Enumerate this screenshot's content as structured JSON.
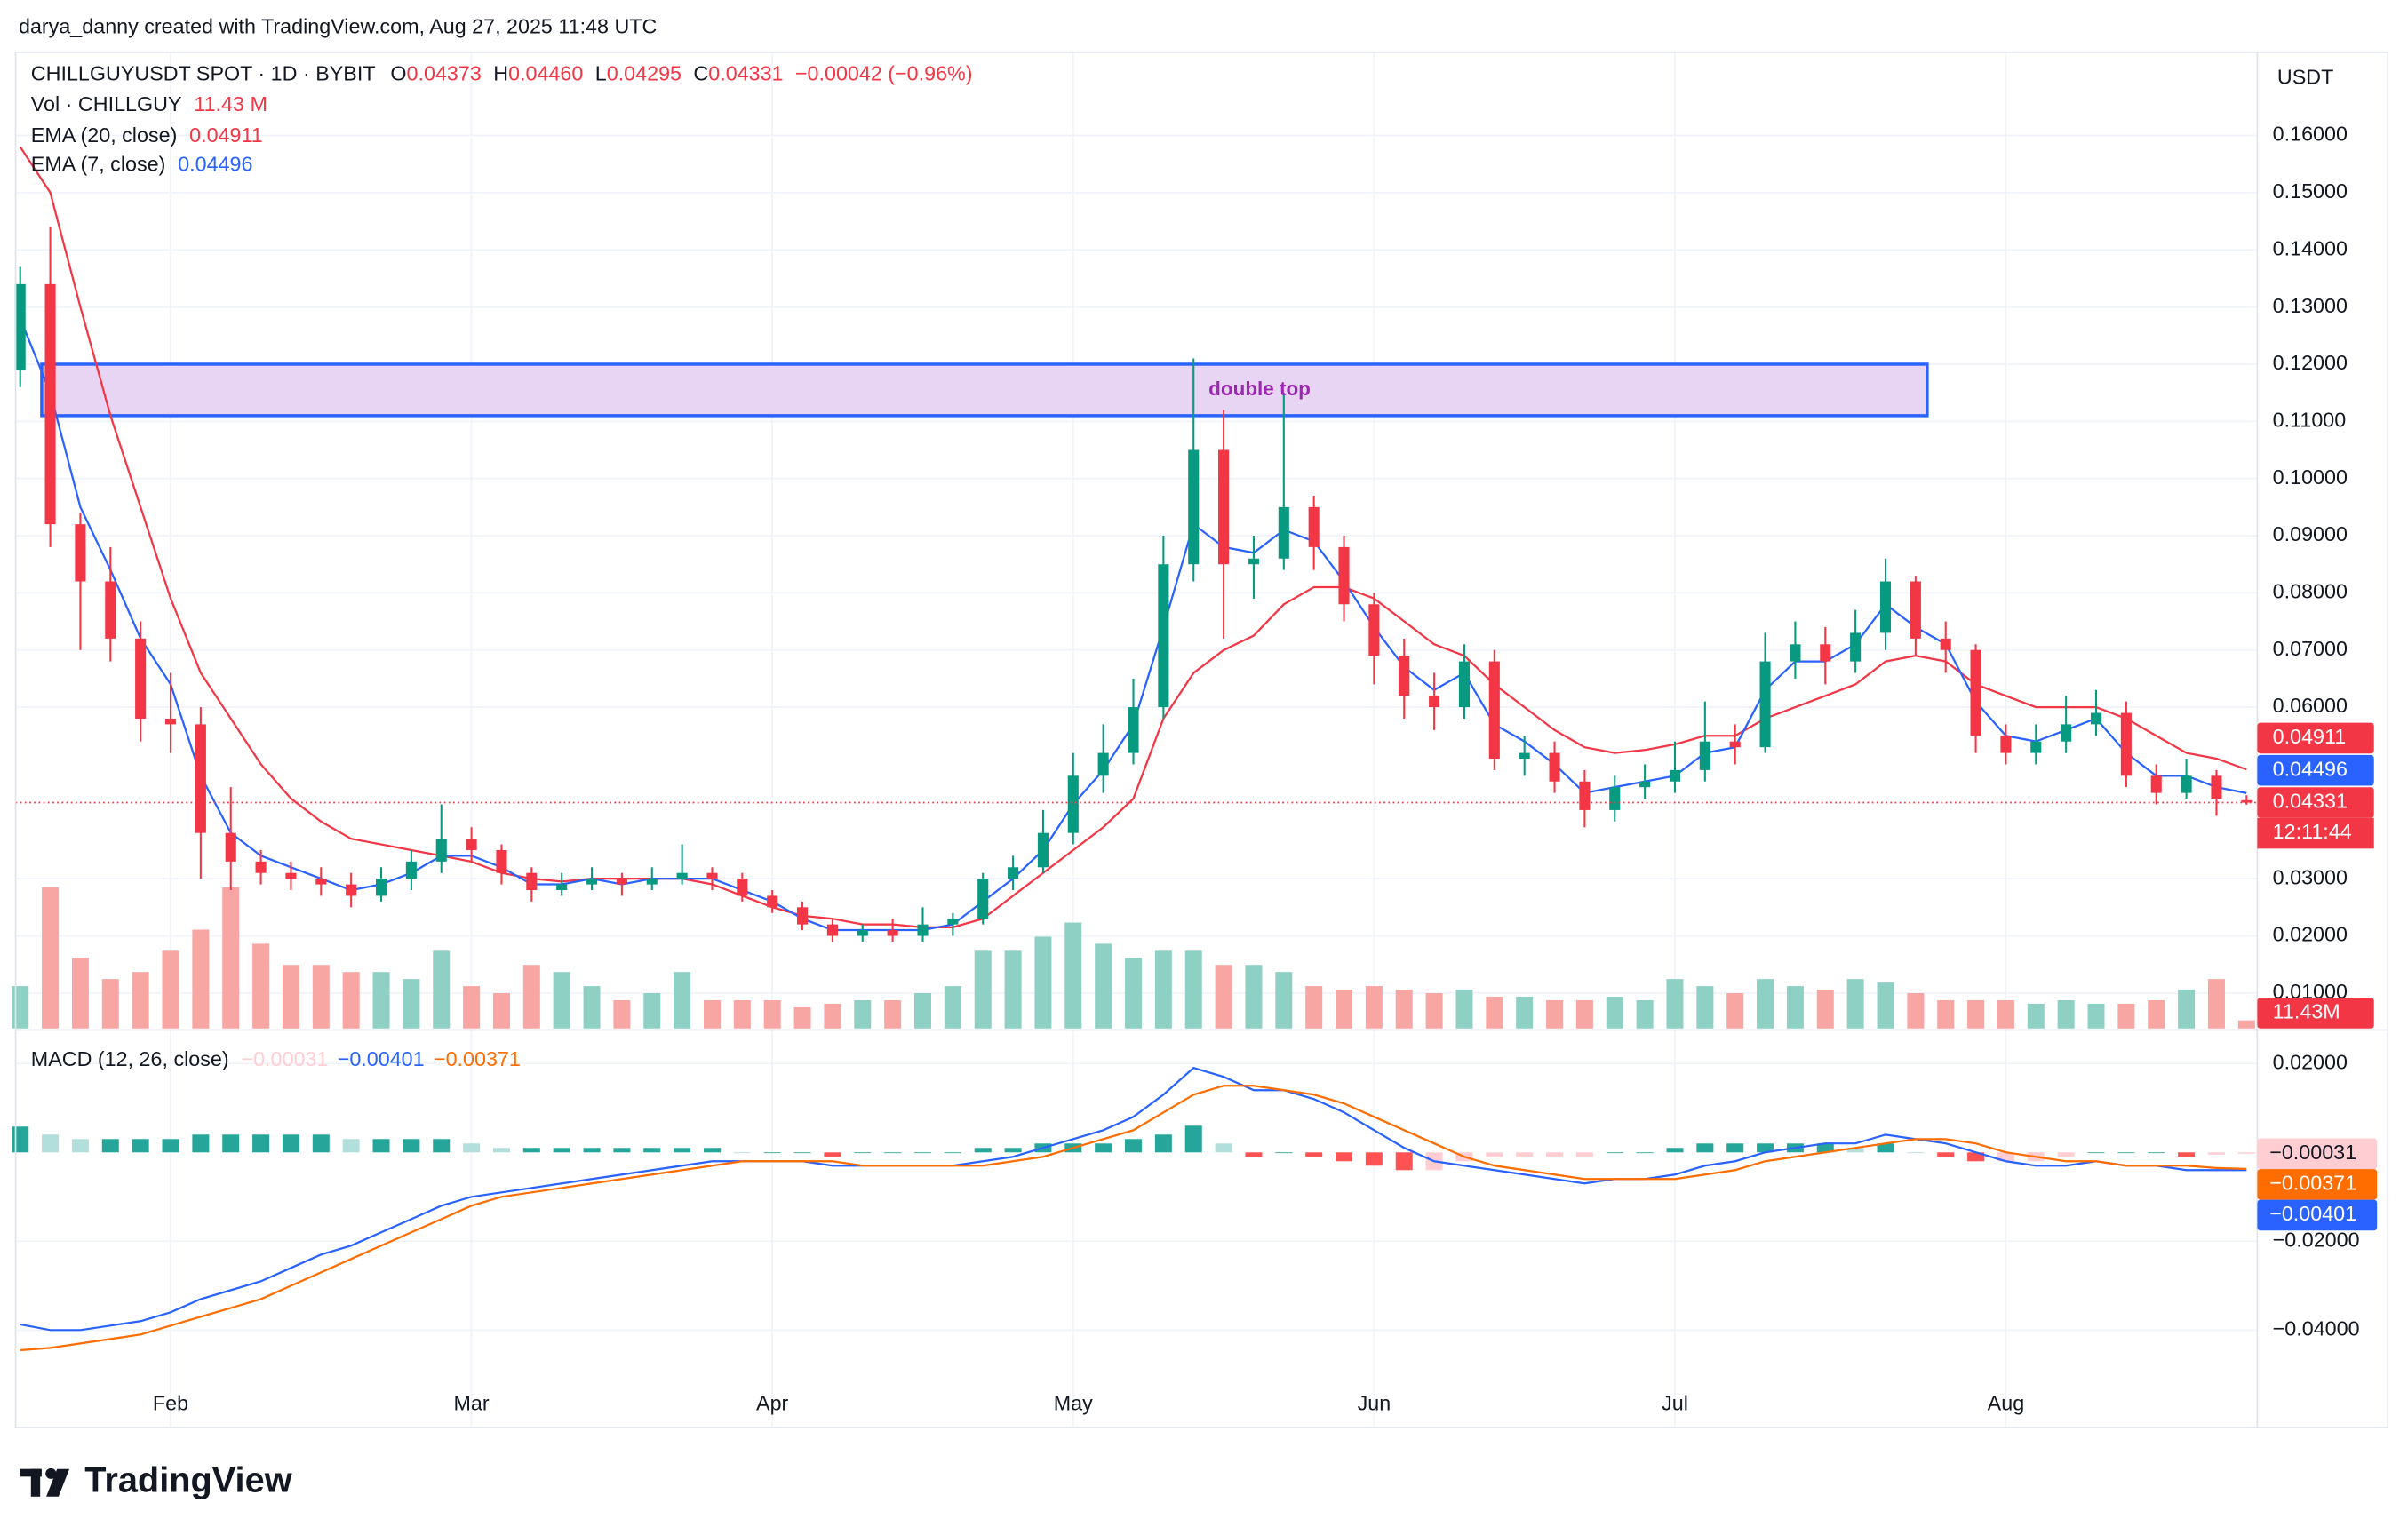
{
  "attribution": "darya_danny created with TradingView.com, Aug 27, 2025 11:48 UTC",
  "brand": "TradingView",
  "chart_data": {
    "type": "candlestick",
    "title": "CHILLGUYUSDT SPOT · 1D · BYBIT",
    "ohlc_header": [
      {
        "label": "O",
        "value": "0.04373"
      },
      {
        "label": "H",
        "value": "0.04460"
      },
      {
        "label": "L",
        "value": "0.04295"
      },
      {
        "label": "C",
        "value": "0.04331"
      }
    ],
    "change": "−0.00042 (−0.96%)",
    "currency": "USDT",
    "categories": [
      null,
      null,
      null,
      null,
      null,
      "Feb",
      null,
      null,
      null,
      null,
      null,
      null,
      null,
      null,
      null,
      "Mar",
      null,
      null,
      null,
      null,
      null,
      null,
      null,
      null,
      null,
      "Apr",
      null,
      null,
      null,
      null,
      null,
      null,
      null,
      null,
      null,
      "May",
      null,
      null,
      null,
      null,
      null,
      null,
      null,
      null,
      null,
      "Jun",
      null,
      null,
      null,
      null,
      null,
      null,
      null,
      null,
      null,
      "Jul",
      null,
      null,
      null,
      null,
      null,
      null,
      null,
      null,
      null,
      null,
      "Aug",
      null,
      null,
      null,
      null,
      null,
      null,
      null,
      null
    ],
    "open": [
      0.119,
      0.134,
      0.092,
      0.082,
      0.072,
      0.058,
      0.057,
      0.038,
      0.033,
      0.031,
      0.03,
      0.029,
      0.027,
      0.03,
      0.033,
      0.037,
      0.035,
      0.031,
      0.028,
      0.029,
      0.03,
      0.029,
      0.03,
      0.031,
      0.03,
      0.027,
      0.025,
      0.022,
      0.02,
      0.021,
      0.02,
      0.022,
      0.023,
      0.03,
      0.032,
      0.038,
      0.048,
      0.052,
      0.06,
      0.085,
      0.105,
      0.085,
      0.086,
      0.095,
      0.088,
      0.078,
      0.069,
      0.062,
      0.06,
      0.068,
      0.051,
      0.052,
      0.047,
      0.042,
      0.046,
      0.047,
      0.049,
      0.054,
      0.053,
      0.068,
      0.071,
      0.068,
      0.073,
      0.082,
      0.072,
      0.07,
      0.055,
      0.052,
      0.054,
      0.057,
      0.059,
      0.048,
      0.045,
      0.048,
      0.04373
    ],
    "high": [
      0.137,
      0.144,
      0.094,
      0.088,
      0.075,
      0.066,
      0.06,
      0.046,
      0.035,
      0.033,
      0.032,
      0.031,
      0.032,
      0.035,
      0.043,
      0.039,
      0.036,
      0.032,
      0.031,
      0.032,
      0.031,
      0.032,
      0.036,
      0.032,
      0.031,
      0.028,
      0.026,
      0.023,
      0.022,
      0.023,
      0.025,
      0.024,
      0.031,
      0.034,
      0.042,
      0.052,
      0.057,
      0.065,
      0.09,
      0.121,
      0.112,
      0.09,
      0.115,
      0.097,
      0.09,
      0.08,
      0.072,
      0.066,
      0.071,
      0.07,
      0.055,
      0.054,
      0.049,
      0.048,
      0.05,
      0.054,
      0.061,
      0.057,
      0.073,
      0.075,
      0.074,
      0.077,
      0.086,
      0.083,
      0.075,
      0.071,
      0.057,
      0.057,
      0.062,
      0.063,
      0.061,
      0.05,
      0.051,
      0.049,
      0.0446
    ],
    "low": [
      0.116,
      0.088,
      0.07,
      0.068,
      0.054,
      0.052,
      0.03,
      0.028,
      0.029,
      0.028,
      0.027,
      0.025,
      0.026,
      0.028,
      0.031,
      0.033,
      0.029,
      0.026,
      0.027,
      0.028,
      0.027,
      0.028,
      0.029,
      0.028,
      0.026,
      0.024,
      0.021,
      0.019,
      0.019,
      0.019,
      0.019,
      0.02,
      0.022,
      0.028,
      0.031,
      0.036,
      0.045,
      0.05,
      0.058,
      0.082,
      0.072,
      0.079,
      0.084,
      0.084,
      0.075,
      0.064,
      0.058,
      0.056,
      0.058,
      0.049,
      0.048,
      0.045,
      0.039,
      0.04,
      0.044,
      0.045,
      0.047,
      0.05,
      0.052,
      0.065,
      0.064,
      0.066,
      0.07,
      0.069,
      0.066,
      0.052,
      0.05,
      0.05,
      0.052,
      0.055,
      0.046,
      0.043,
      0.044,
      0.041,
      0.04295
    ],
    "close": [
      0.134,
      0.092,
      0.082,
      0.072,
      0.058,
      0.057,
      0.038,
      0.033,
      0.031,
      0.03,
      0.029,
      0.027,
      0.03,
      0.033,
      0.037,
      0.035,
      0.031,
      0.028,
      0.029,
      0.03,
      0.029,
      0.03,
      0.031,
      0.03,
      0.027,
      0.025,
      0.022,
      0.02,
      0.021,
      0.02,
      0.022,
      0.023,
      0.03,
      0.032,
      0.038,
      0.048,
      0.052,
      0.06,
      0.085,
      0.105,
      0.085,
      0.086,
      0.095,
      0.088,
      0.078,
      0.069,
      0.062,
      0.06,
      0.068,
      0.051,
      0.052,
      0.047,
      0.042,
      0.046,
      0.047,
      0.049,
      0.054,
      0.053,
      0.068,
      0.071,
      0.068,
      0.073,
      0.082,
      0.072,
      0.07,
      0.055,
      0.052,
      0.054,
      0.057,
      0.059,
      0.048,
      0.045,
      0.048,
      0.044,
      0.04331
    ],
    "up_color": "#089981",
    "down_color": "#f23645",
    "ylim": [
      0.0038,
      0.1735
    ],
    "yticks": [
      {
        "value": 0.16,
        "label": "0.16000"
      },
      {
        "value": 0.15,
        "label": "0.15000"
      },
      {
        "value": 0.14,
        "label": "0.14000"
      },
      {
        "value": 0.13,
        "label": "0.13000"
      },
      {
        "value": 0.12,
        "label": "0.12000"
      },
      {
        "value": 0.11,
        "label": "0.11000"
      },
      {
        "value": 0.1,
        "label": "0.10000"
      },
      {
        "value": 0.09,
        "label": "0.09000"
      },
      {
        "value": 0.08,
        "label": "0.08000"
      },
      {
        "value": 0.07,
        "label": "0.07000"
      },
      {
        "value": 0.06,
        "label": "0.06000"
      },
      {
        "value": 0.03,
        "label": "0.03000"
      },
      {
        "value": 0.02,
        "label": "0.02000"
      },
      {
        "value": 0.01,
        "label": "0.01000"
      }
    ],
    "grid": true,
    "overlays": [
      {
        "name": "EMA (20, close)",
        "value_label": "0.04911",
        "color": "#f23645",
        "values": [
          0.158,
          0.15,
          0.13,
          0.111,
          0.095,
          0.079,
          0.066,
          0.058,
          0.05,
          0.044,
          0.04,
          0.037,
          0.036,
          0.035,
          0.034,
          0.033,
          0.031,
          0.03,
          0.0295,
          0.03,
          0.03,
          0.03,
          0.03,
          0.029,
          0.027,
          0.025,
          0.0235,
          0.023,
          0.022,
          0.022,
          0.0215,
          0.0215,
          0.023,
          0.027,
          0.031,
          0.035,
          0.039,
          0.044,
          0.058,
          0.066,
          0.07,
          0.0725,
          0.078,
          0.081,
          0.081,
          0.079,
          0.075,
          0.071,
          0.069,
          0.064,
          0.06,
          0.056,
          0.053,
          0.052,
          0.0525,
          0.0535,
          0.055,
          0.055,
          0.058,
          0.06,
          0.062,
          0.064,
          0.068,
          0.069,
          0.068,
          0.064,
          0.062,
          0.06,
          0.06,
          0.06,
          0.058,
          0.055,
          0.052,
          0.051,
          0.04911
        ]
      },
      {
        "name": "EMA (7, close)",
        "value_label": "0.04496",
        "color": "#2962ff",
        "values": [
          0.128,
          0.115,
          0.095,
          0.084,
          0.072,
          0.064,
          0.048,
          0.038,
          0.034,
          0.032,
          0.03,
          0.028,
          0.029,
          0.031,
          0.034,
          0.034,
          0.032,
          0.029,
          0.029,
          0.03,
          0.029,
          0.03,
          0.03,
          0.03,
          0.028,
          0.026,
          0.023,
          0.021,
          0.021,
          0.021,
          0.021,
          0.022,
          0.026,
          0.03,
          0.035,
          0.043,
          0.049,
          0.057,
          0.074,
          0.092,
          0.088,
          0.087,
          0.091,
          0.089,
          0.082,
          0.074,
          0.067,
          0.063,
          0.066,
          0.057,
          0.054,
          0.05,
          0.045,
          0.046,
          0.047,
          0.048,
          0.052,
          0.053,
          0.063,
          0.068,
          0.068,
          0.071,
          0.078,
          0.074,
          0.071,
          0.061,
          0.055,
          0.054,
          0.056,
          0.058,
          0.052,
          0.048,
          0.048,
          0.046,
          0.04496
        ]
      }
    ],
    "volume": {
      "name": "Vol · CHILLGUY",
      "value_label": "11.43 M",
      "badge": "11.43M",
      "ylim": [
        0,
        500
      ],
      "up_color": "#8fd0c5",
      "down_color": "#f7a6a4",
      "badge_color": "#f23645",
      "values": [
        60,
        200,
        100,
        70,
        80,
        110,
        140,
        200,
        120,
        90,
        90,
        80,
        80,
        70,
        110,
        60,
        50,
        90,
        80,
        60,
        40,
        50,
        80,
        40,
        40,
        40,
        30,
        35,
        40,
        40,
        50,
        60,
        110,
        110,
        130,
        150,
        120,
        100,
        110,
        110,
        90,
        90,
        80,
        60,
        55,
        60,
        55,
        50,
        55,
        45,
        45,
        40,
        40,
        45,
        40,
        70,
        60,
        50,
        70,
        60,
        55,
        70,
        65,
        50,
        40,
        40,
        40,
        35,
        40,
        35,
        35,
        40,
        55,
        70,
        11.43
      ]
    },
    "zone": {
      "label": "double top",
      "ylim": [
        0.111,
        0.12
      ],
      "fill": "#e8d4f3",
      "stroke": "#2962ff",
      "label_color": "#9c27b0"
    },
    "price_badges": [
      {
        "value": 0.04331,
        "label": "0.04331",
        "color": "#f23645",
        "timer": "12:11:44"
      },
      {
        "value": 0.04496,
        "label": "0.04496",
        "color": "#2962ff"
      },
      {
        "value": 0.04911,
        "label": "0.04911",
        "color": "#f23645"
      }
    ],
    "macd": {
      "name": "MACD (12, 26, close)",
      "ylim": [
        -0.0602,
        0.0272
      ],
      "yticks": [
        {
          "value": 0.02,
          "label": "0.02000"
        },
        {
          "value": -0.02,
          "label": "−0.02000"
        },
        {
          "value": -0.04,
          "label": "−0.04000"
        }
      ],
      "histogram": {
        "value_label": "−0.00031",
        "colors": [
          "#26a69a",
          "#b2dfdb",
          "#ffcdd2",
          "#ff5252"
        ],
        "values": [
          0.0058,
          0.004,
          0.003,
          0.003,
          0.003,
          0.003,
          0.004,
          0.004,
          0.004,
          0.004,
          0.004,
          0.003,
          0.003,
          0.003,
          0.003,
          0.002,
          0.001,
          0.001,
          0.001,
          0.001,
          0.001,
          0.001,
          0.001,
          0.001,
          0,
          0,
          0,
          -0.001,
          0,
          0,
          0,
          0,
          0.001,
          0.001,
          0.002,
          0.002,
          0.002,
          0.003,
          0.004,
          0.006,
          0.002,
          -0.001,
          0,
          -0.001,
          -0.002,
          -0.003,
          -0.004,
          -0.004,
          -0.002,
          -0.001,
          -0.001,
          -0.001,
          -0.001,
          0,
          0,
          0.001,
          0.002,
          0.002,
          0.002,
          0.002,
          0.002,
          0.001,
          0.002,
          0,
          -0.001,
          -0.002,
          -0.002,
          -0.002,
          -0.001,
          0,
          0,
          0,
          -0.001,
          -0.0005,
          -0.00031
        ]
      },
      "macd_line": {
        "value_label": "−0.00401",
        "color": "#2962ff",
        "values": [
          -0.0387,
          -0.04,
          -0.04,
          -0.039,
          -0.038,
          -0.036,
          -0.033,
          -0.031,
          -0.029,
          -0.026,
          -0.023,
          -0.021,
          -0.018,
          -0.015,
          -0.012,
          -0.01,
          -0.009,
          -0.008,
          -0.007,
          -0.006,
          -0.005,
          -0.004,
          -0.003,
          -0.002,
          -0.002,
          -0.002,
          -0.002,
          -0.003,
          -0.003,
          -0.003,
          -0.003,
          -0.003,
          -0.002,
          -0.001,
          0.001,
          0.003,
          0.005,
          0.008,
          0.013,
          0.019,
          0.017,
          0.014,
          0.014,
          0.012,
          0.009,
          0.005,
          0.001,
          -0.002,
          -0.003,
          -0.004,
          -0.005,
          -0.006,
          -0.007,
          -0.006,
          -0.006,
          -0.005,
          -0.003,
          -0.002,
          0,
          0.001,
          0.002,
          0.002,
          0.004,
          0.003,
          0.002,
          0,
          -0.002,
          -0.003,
          -0.003,
          -0.002,
          -0.003,
          -0.003,
          -0.004,
          -0.004,
          -0.00401
        ]
      },
      "signal_line": {
        "value_label": "−0.00371",
        "color": "#ff6d00",
        "values": [
          -0.0445,
          -0.044,
          -0.043,
          -0.042,
          -0.041,
          -0.039,
          -0.037,
          -0.035,
          -0.033,
          -0.03,
          -0.027,
          -0.024,
          -0.021,
          -0.018,
          -0.015,
          -0.012,
          -0.01,
          -0.009,
          -0.008,
          -0.007,
          -0.006,
          -0.005,
          -0.004,
          -0.003,
          -0.002,
          -0.002,
          -0.002,
          -0.002,
          -0.003,
          -0.003,
          -0.003,
          -0.003,
          -0.003,
          -0.002,
          -0.001,
          0.001,
          0.003,
          0.005,
          0.009,
          0.013,
          0.015,
          0.015,
          0.014,
          0.013,
          0.011,
          0.008,
          0.005,
          0.002,
          -0.001,
          -0.003,
          -0.004,
          -0.005,
          -0.006,
          -0.006,
          -0.006,
          -0.006,
          -0.005,
          -0.004,
          -0.002,
          -0.001,
          0,
          0.001,
          0.002,
          0.003,
          0.003,
          0.002,
          0,
          -0.001,
          -0.002,
          -0.002,
          -0.003,
          -0.003,
          -0.003,
          -0.0035,
          -0.00371
        ]
      },
      "badges": [
        {
          "value": -0.00031,
          "label": "−0.00031",
          "color": "#ffcdd2",
          "text_color": "#131722"
        },
        {
          "value": -0.00371,
          "label": "−0.00371",
          "color": "#ff6d00",
          "text_color": "#ffffff"
        },
        {
          "value": -0.00401,
          "label": "−0.00401",
          "color": "#2962ff",
          "text_color": "#ffffff"
        }
      ]
    }
  }
}
